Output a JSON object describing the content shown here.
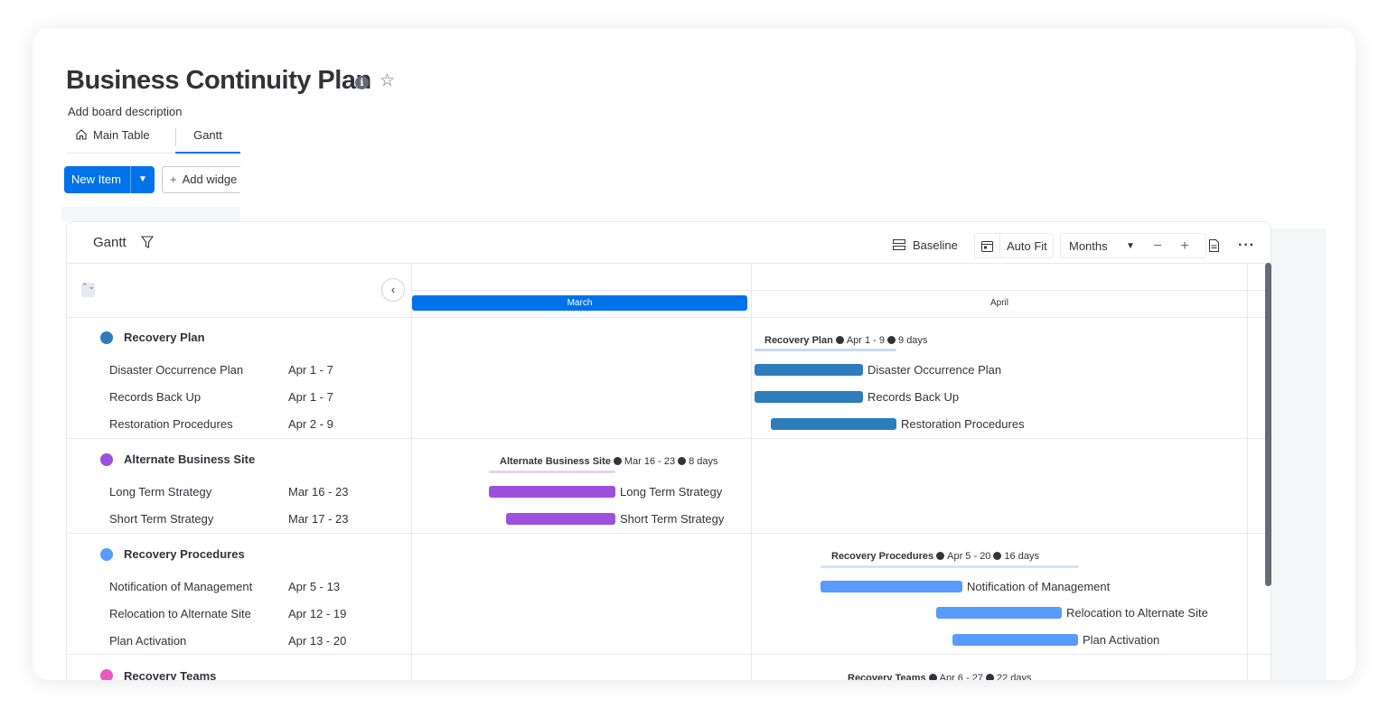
{
  "board": {
    "title": "Business Continuity Plan",
    "description": "Add board description",
    "info_icon": "i",
    "star_icon": "☆"
  },
  "tabs": [
    {
      "label": "Main Table",
      "icon": "home-icon"
    },
    {
      "label": "Gantt",
      "active": true
    }
  ],
  "toolbar": {
    "new_item": "New Item",
    "new_item_arrow": "⌄",
    "add_widget": "Add widge",
    "add_widget_icon": "+"
  },
  "gantt": {
    "title": "Gantt",
    "baseline": "Baseline",
    "auto_fit": "Auto Fit",
    "zoom": "Months",
    "zoom_out": "−",
    "zoom_in": "+",
    "more": "···",
    "back": "‹",
    "collapse": "⌃⌄",
    "months": [
      "March",
      "April"
    ],
    "colors": {
      "accent": "#0073ea",
      "recovery_plan": "#2d7dbd",
      "alternate_site": "#9d50dd",
      "recovery_procedures": "#579bfc",
      "recovery_teams": "#e959c4"
    },
    "groups": [
      {
        "name": "Recovery Plan",
        "summary": {
          "name": "Recovery Plan",
          "dates": "Apr 1 - 9",
          "duration": "9 days"
        },
        "items": [
          {
            "name": "Disaster Occurrence Plan",
            "dates": "Apr 1 - 7"
          },
          {
            "name": "Records Back Up",
            "dates": "Apr 1 - 7"
          },
          {
            "name": "Restoration Procedures",
            "dates": "Apr 2 - 9"
          }
        ]
      },
      {
        "name": "Alternate Business Site",
        "summary": {
          "name": "Alternate Business Site",
          "dates": "Mar 16 - 23",
          "duration": "8 days"
        },
        "items": [
          {
            "name": "Long Term Strategy",
            "dates": "Mar 16 - 23"
          },
          {
            "name": "Short Term Strategy",
            "dates": "Mar 17 - 23"
          }
        ]
      },
      {
        "name": "Recovery Procedures",
        "summary": {
          "name": "Recovery Procedures",
          "dates": "Apr 5 - 20",
          "duration": "16 days"
        },
        "items": [
          {
            "name": "Notification of Management",
            "dates": "Apr 5 - 13"
          },
          {
            "name": "Relocation to Alternate Site",
            "dates": "Apr 12 - 19"
          },
          {
            "name": "Plan Activation",
            "dates": "Apr 13 - 20"
          }
        ]
      },
      {
        "name": "Recovery Teams",
        "summary": {
          "name": "Recovery Teams",
          "dates": "Apr 6 - 27",
          "duration": "22 days"
        },
        "items": []
      }
    ]
  }
}
